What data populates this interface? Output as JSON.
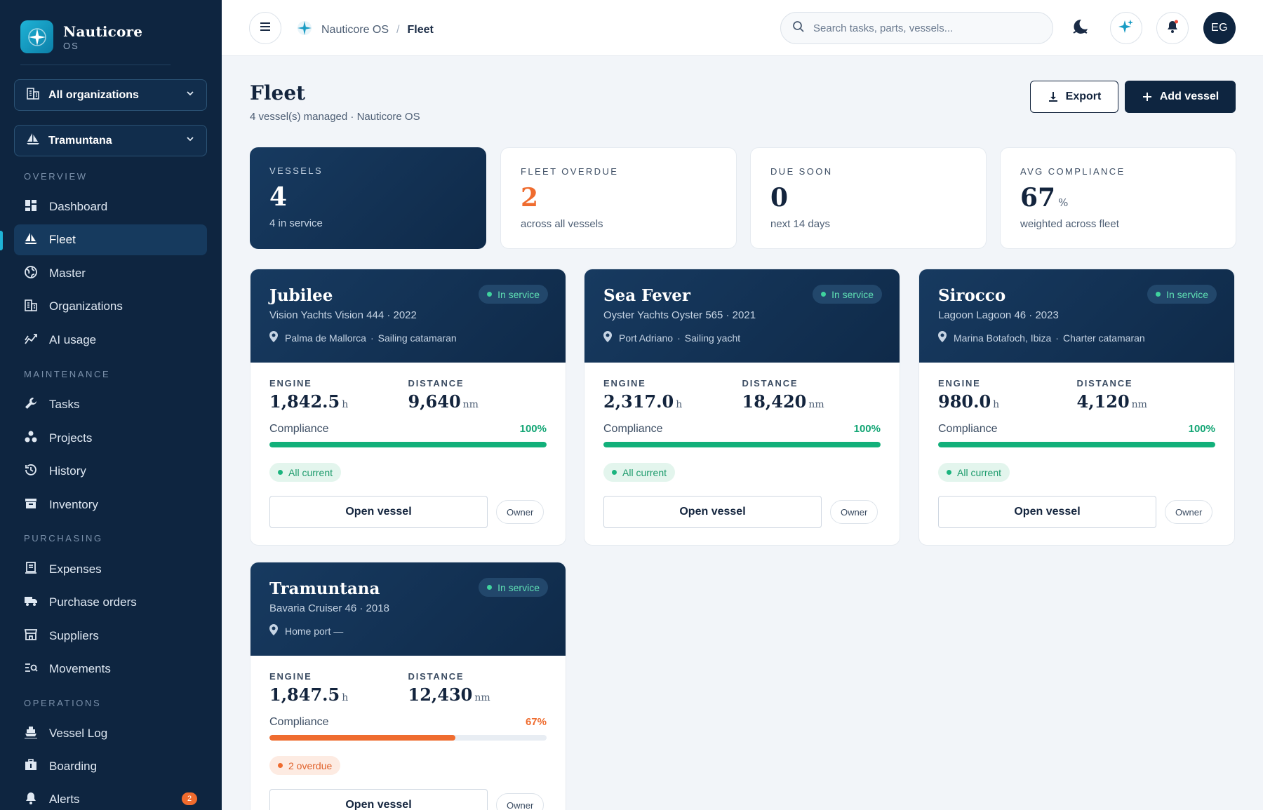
{
  "brand": {
    "name": "Nauticore",
    "sub": "OS"
  },
  "sidebar": {
    "org_select": "All organizations",
    "vessel_select": "Tramuntana",
    "sections": {
      "overview": "OVERVIEW",
      "maintenance": "MAINTENANCE",
      "purchasing": "PURCHASING",
      "operations": "OPERATIONS"
    },
    "items": {
      "dashboard": "Dashboard",
      "fleet": "Fleet",
      "master": "Master",
      "organizations": "Organizations",
      "ai_usage": "AI usage",
      "tasks": "Tasks",
      "projects": "Projects",
      "history": "History",
      "inventory": "Inventory",
      "expenses": "Expenses",
      "purchase_orders": "Purchase orders",
      "suppliers": "Suppliers",
      "movements": "Movements",
      "vessel_log": "Vessel Log",
      "boarding": "Boarding",
      "alerts": "Alerts"
    },
    "alerts_badge": "2"
  },
  "topbar": {
    "breadcrumb_root": "Nauticore OS",
    "breadcrumb_sep": "/",
    "breadcrumb_current": "Fleet",
    "search_placeholder": "Search tasks, parts, vessels...",
    "avatar_initials": "EG"
  },
  "page": {
    "title": "Fleet",
    "subtitle": "4 vessel(s) managed · Nauticore OS",
    "export_label": "Export",
    "add_label": "Add vessel"
  },
  "stats": [
    {
      "key": "VESSELS",
      "value": "4",
      "unit": "",
      "sub": "4 in service"
    },
    {
      "key": "FLEET OVERDUE",
      "value": "2",
      "unit": "",
      "sub": "across all vessels"
    },
    {
      "key": "DUE SOON",
      "value": "0",
      "unit": "",
      "sub": "next 14 days"
    },
    {
      "key": "AVG COMPLIANCE",
      "value": "67",
      "unit": "%",
      "sub": "weighted across fleet"
    }
  ],
  "labels": {
    "engine": "ENGINE",
    "distance": "DISTANCE",
    "compliance": "Compliance",
    "open_vessel": "Open vessel",
    "owner": "Owner",
    "hours_unit": "h",
    "nm_unit": "nm",
    "dot": "·"
  },
  "vessels": [
    {
      "name": "Jubilee",
      "model": "Vision Yachts Vision 444 · 2022",
      "port": "Palma de Mallorca",
      "type": "Sailing catamaran",
      "status": "In service",
      "engine": "1,842.5",
      "distance": "9,640",
      "compliance_pct": "100%",
      "compliance_value": 100,
      "tag": "All current"
    },
    {
      "name": "Sea Fever",
      "model": "Oyster Yachts Oyster 565 · 2021",
      "port": "Port Adriano",
      "type": "Sailing yacht",
      "status": "In service",
      "engine": "2,317.0",
      "distance": "18,420",
      "compliance_pct": "100%",
      "compliance_value": 100,
      "tag": "All current"
    },
    {
      "name": "Sirocco",
      "model": "Lagoon Lagoon 46 · 2023",
      "port": "Marina Botafoch, Ibiza",
      "type": "Charter catamaran",
      "status": "In service",
      "engine": "980.0",
      "distance": "4,120",
      "compliance_pct": "100%",
      "compliance_value": 100,
      "tag": "All current"
    },
    {
      "name": "Tramuntana",
      "model": "Bavaria Cruiser 46 · 2018",
      "port": "Home port —",
      "type": "",
      "status": "In service",
      "engine": "1,847.5",
      "distance": "12,430",
      "compliance_pct": "67%",
      "compliance_value": 67,
      "tag": "2 overdue"
    }
  ],
  "colors": {
    "navy": "#0e2540",
    "accent": "#1fb3d6",
    "ok": "#12b07a",
    "warn": "#ef6c2f"
  }
}
